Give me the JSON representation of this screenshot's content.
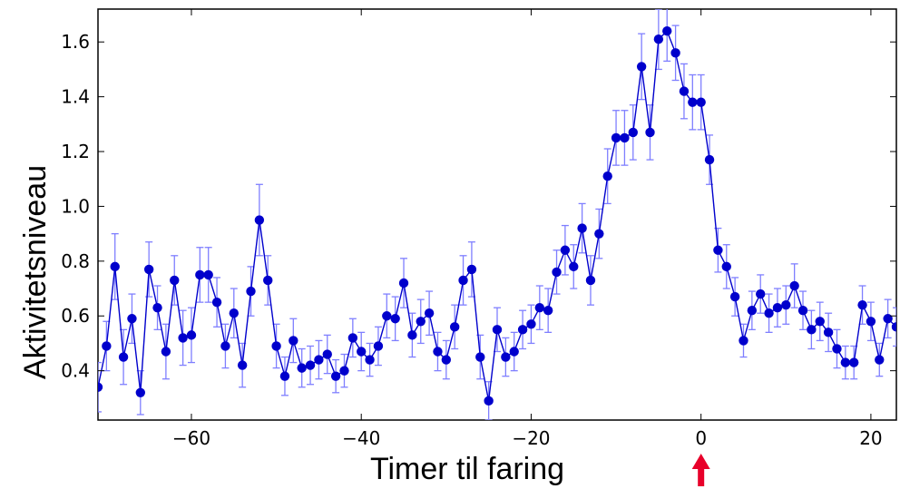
{
  "chart_data": {
    "type": "line",
    "title": "",
    "xlabel": "Timer til faring",
    "ylabel": "Aktivitetsniveau",
    "xlim": [
      -71,
      23
    ],
    "ylim": [
      0.22,
      1.72
    ],
    "xticks": [
      -60,
      -40,
      -20,
      0,
      20
    ],
    "xtick_labels": [
      "−60",
      "−40",
      "−20",
      "0",
      "20"
    ],
    "yticks": [
      0.4,
      0.6,
      0.8,
      1.0,
      1.2,
      1.4,
      1.6
    ],
    "ytick_labels": [
      "0.4",
      "0.6",
      "0.8",
      "1.0",
      "1.2",
      "1.4",
      "1.6"
    ],
    "grid": false,
    "legend": "none",
    "marker_at_x": 0,
    "colors": {
      "series": "#0000cc",
      "errorbar": "#7f7fff",
      "arrow": "#e8002a"
    },
    "series": [
      {
        "x": [
          -71,
          -70,
          -69,
          -68,
          -67,
          -66,
          -65,
          -64,
          -63,
          -62,
          -61,
          -60,
          -59,
          -58,
          -57,
          -56,
          -55,
          -54,
          -53,
          -52,
          -51,
          -50,
          -49,
          -48,
          -47,
          -46,
          -45,
          -44,
          -43,
          -42,
          -41,
          -40,
          -39,
          -38,
          -37,
          -36,
          -35,
          -34,
          -33,
          -32,
          -31,
          -30,
          -29,
          -28,
          -27,
          -26,
          -25,
          -24,
          -23,
          -22,
          -21,
          -20,
          -19,
          -18,
          -17,
          -16,
          -15,
          -14,
          -13,
          -12,
          -11,
          -10,
          -9,
          -8,
          -7,
          -6,
          -5,
          -4,
          -3,
          -2,
          -1,
          0,
          1,
          2,
          3,
          4,
          5,
          6,
          7,
          8,
          9,
          10,
          11,
          12,
          13,
          14,
          15,
          16,
          17,
          18,
          19,
          20,
          21,
          22,
          23
        ],
        "y": [
          0.34,
          0.49,
          0.78,
          0.45,
          0.59,
          0.32,
          0.77,
          0.63,
          0.47,
          0.73,
          0.52,
          0.53,
          0.75,
          0.75,
          0.65,
          0.49,
          0.61,
          0.42,
          0.69,
          0.95,
          0.73,
          0.49,
          0.38,
          0.51,
          0.41,
          0.42,
          0.44,
          0.46,
          0.38,
          0.4,
          0.52,
          0.47,
          0.44,
          0.49,
          0.6,
          0.59,
          0.72,
          0.53,
          0.58,
          0.61,
          0.47,
          0.44,
          0.56,
          0.73,
          0.77,
          0.45,
          0.29,
          0.55,
          0.45,
          0.47,
          0.55,
          0.57,
          0.63,
          0.62,
          0.76,
          0.84,
          0.78,
          0.92,
          0.73,
          0.9,
          1.11,
          1.25,
          1.25,
          1.27,
          1.51,
          1.27,
          1.61,
          1.64,
          1.56,
          1.42,
          1.38,
          1.38,
          1.17,
          0.84,
          0.78,
          0.67,
          0.51,
          0.62,
          0.68,
          0.61,
          0.63,
          0.64,
          0.71,
          0.62,
          0.55,
          0.58,
          0.54,
          0.48,
          0.43,
          0.43,
          0.64,
          0.58,
          0.44,
          0.59,
          0.56
        ],
        "err": [
          0.09,
          0.09,
          0.12,
          0.1,
          0.09,
          0.08,
          0.1,
          0.08,
          0.1,
          0.09,
          0.1,
          0.1,
          0.1,
          0.1,
          0.09,
          0.08,
          0.09,
          0.08,
          0.09,
          0.13,
          0.09,
          0.08,
          0.07,
          0.08,
          0.07,
          0.07,
          0.07,
          0.07,
          0.06,
          0.06,
          0.07,
          0.07,
          0.06,
          0.07,
          0.08,
          0.08,
          0.09,
          0.08,
          0.08,
          0.08,
          0.07,
          0.07,
          0.08,
          0.09,
          0.1,
          0.08,
          0.07,
          0.08,
          0.07,
          0.07,
          0.07,
          0.07,
          0.08,
          0.08,
          0.08,
          0.09,
          0.08,
          0.09,
          0.09,
          0.09,
          0.1,
          0.1,
          0.1,
          0.1,
          0.12,
          0.1,
          0.11,
          0.11,
          0.1,
          0.1,
          0.1,
          0.1,
          0.09,
          0.08,
          0.08,
          0.07,
          0.06,
          0.07,
          0.07,
          0.07,
          0.07,
          0.07,
          0.08,
          0.07,
          0.07,
          0.07,
          0.07,
          0.07,
          0.06,
          0.06,
          0.07,
          0.07,
          0.06,
          0.07,
          0.07
        ]
      }
    ]
  }
}
